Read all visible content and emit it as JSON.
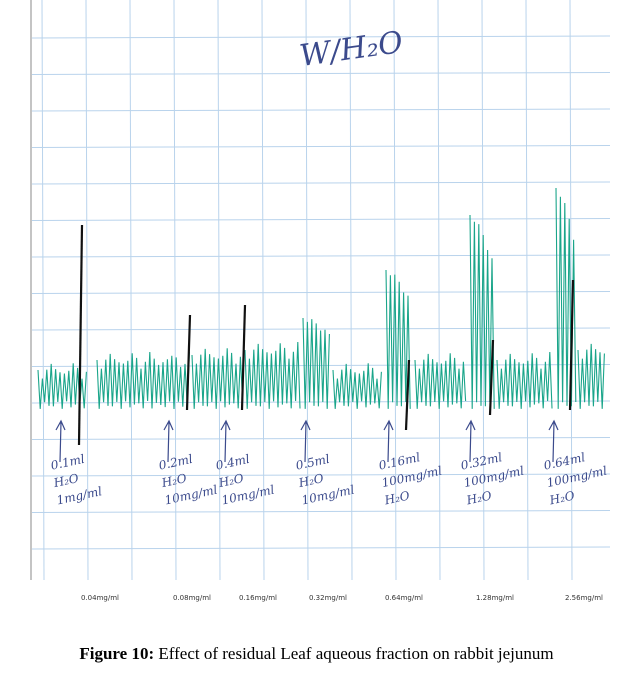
{
  "figure": {
    "handwritten_title": "W/H₂O",
    "doses": [
      {
        "note": [
          "0.1ml",
          "H₂O",
          "1mg/ml"
        ],
        "label": "0.04mg/ml"
      },
      {
        "note": [
          "0.2ml",
          "H₂O",
          "10mg/ml"
        ],
        "label": "0.08mg/ml"
      },
      {
        "note": [
          "0.4ml",
          "H₂O",
          "10mg/ml"
        ],
        "label": "0.16mg/ml"
      },
      {
        "note": [
          "0.5ml",
          "H₂O",
          "10mg/ml"
        ],
        "label": "0.32mg/ml"
      },
      {
        "note": [
          "0.16ml",
          "100mg/ml",
          "H₂O"
        ],
        "label": "0.64mg/ml"
      },
      {
        "note": [
          "0.32ml",
          "100mg/ml",
          "H₂O"
        ],
        "label": "1.28mg/ml"
      },
      {
        "note": [
          "0.64ml",
          "100mg/ml",
          "H₂O"
        ],
        "label": "2.56mg/ml"
      }
    ]
  },
  "caption": {
    "number": "Figure 10:",
    "text": "Effect of residual Leaf aqueous fraction on rabbit jejunum"
  }
}
